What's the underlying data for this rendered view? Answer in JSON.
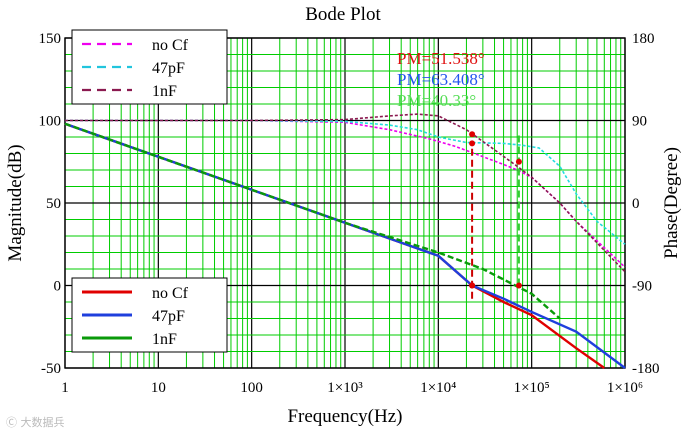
{
  "chart_data": {
    "type": "line",
    "title": "Bode Plot",
    "xlabel": "Frequency(Hz)",
    "ylabel_left": "Magnitude(dB)",
    "ylabel_right": "Phase(Degree)",
    "x_scale": "log",
    "xlim": [
      1,
      1000000
    ],
    "ylim_left": [
      -50,
      150
    ],
    "ylim_right": [
      -180,
      180
    ],
    "grid": true,
    "x_ticks": [
      {
        "value": 1,
        "label": "1"
      },
      {
        "value": 10,
        "label": "10"
      },
      {
        "value": 100,
        "label": "100"
      },
      {
        "value": 1000,
        "label": "1×10³"
      },
      {
        "value": 10000,
        "label": "1×10⁴"
      },
      {
        "value": 100000,
        "label": "1×10⁵"
      },
      {
        "value": 1000000,
        "label": "1×10⁶"
      }
    ],
    "y_ticks_left": [
      {
        "value": 150,
        "label": "150"
      },
      {
        "value": 100,
        "label": "100"
      },
      {
        "value": 50,
        "label": "50"
      },
      {
        "value": 0,
        "label": "0"
      },
      {
        "value": -50,
        "label": "-50"
      }
    ],
    "y_ticks_right": [
      {
        "value": 180,
        "label": "180"
      },
      {
        "value": 90,
        "label": "90"
      },
      {
        "value": 0,
        "label": "0"
      },
      {
        "value": -90,
        "label": "-90"
      },
      {
        "value": -180,
        "label": "-180"
      }
    ],
    "magnitude_series": [
      {
        "name": "no Cf",
        "color": "#e00000",
        "x": [
          1,
          10,
          100,
          1000,
          10000,
          23000,
          50000,
          100000,
          300000,
          600000
        ],
        "y": [
          98,
          78,
          58,
          38,
          18,
          0,
          -10,
          -18,
          -38,
          -50
        ]
      },
      {
        "name": "47pF",
        "color": "#1f3fdd",
        "x": [
          1,
          10,
          100,
          1000,
          10000,
          23000,
          50000,
          100000,
          300000,
          1000000
        ],
        "y": [
          98,
          78,
          58,
          38,
          18,
          0,
          -8,
          -16,
          -28,
          -50
        ]
      },
      {
        "name": "1nF",
        "color": "#0a9a0a",
        "x": [
          1,
          10,
          100,
          1000,
          10000,
          30000,
          100000,
          200000
        ],
        "y": [
          98,
          78,
          58,
          38,
          20,
          10,
          -5,
          -20
        ]
      }
    ],
    "phase_series": [
      {
        "name": "no Cf",
        "color": "#ee00ee",
        "x": [
          1,
          100,
          1000,
          3000,
          8000,
          15000,
          23000,
          50000,
          70000,
          100000,
          200000,
          300000,
          1000000
        ],
        "y": [
          90,
          90,
          88,
          80,
          70,
          62,
          55,
          42,
          36,
          28,
          0,
          -20,
          -70
        ]
      },
      {
        "name": "47pF",
        "color": "#22dddd",
        "x": [
          1,
          100,
          1000,
          3000,
          6000,
          10000,
          20000,
          50000,
          80000,
          120000,
          200000,
          300000,
          500000,
          1000000
        ],
        "y": [
          90,
          90,
          89,
          85,
          80,
          72,
          66,
          65,
          63,
          60,
          40,
          10,
          -20,
          -45
        ]
      },
      {
        "name": "1nF",
        "color": "#8b1a50",
        "x": [
          1,
          100,
          1000,
          3000,
          6000,
          10000,
          20000,
          40000,
          70000,
          100000,
          200000,
          300000,
          1000000
        ],
        "y": [
          90,
          90,
          91,
          95,
          97,
          95,
          80,
          58,
          40,
          28,
          0,
          -20,
          -75
        ]
      }
    ],
    "markers": [
      {
        "x": 23000,
        "mag": 0,
        "phase": 65,
        "color": "#e00000"
      },
      {
        "x": 23000,
        "mag": 0,
        "phase": 75,
        "color": "#e00000"
      },
      {
        "x": 73000,
        "mag": 0,
        "phase": 45,
        "color": "#e00000"
      }
    ],
    "vlines": [
      {
        "x": 23000,
        "from": -8,
        "to": 66,
        "color": "#cc0000"
      },
      {
        "x": 73000,
        "from": 0,
        "to": 75,
        "color": "#33cc33"
      }
    ],
    "annotations": [
      {
        "text": "PM=51.538°",
        "color": "#e01010"
      },
      {
        "text": "PM=63.408°",
        "color": "#2255ee"
      },
      {
        "text": "PM=40.33°",
        "color": "#55dd55"
      }
    ],
    "legend_phase": [
      {
        "name": "no Cf",
        "color": "#ee00ee"
      },
      {
        "name": "47pF",
        "color": "#22c5dd"
      },
      {
        "name": "1nF",
        "color": "#8b1a50"
      }
    ],
    "legend_magnitude": [
      {
        "name": "no Cf",
        "color": "#e00000"
      },
      {
        "name": "47pF",
        "color": "#1f3fdd"
      },
      {
        "name": "1nF",
        "color": "#0a9a0a"
      }
    ]
  },
  "watermark": "Ⓒ 大数据兵"
}
